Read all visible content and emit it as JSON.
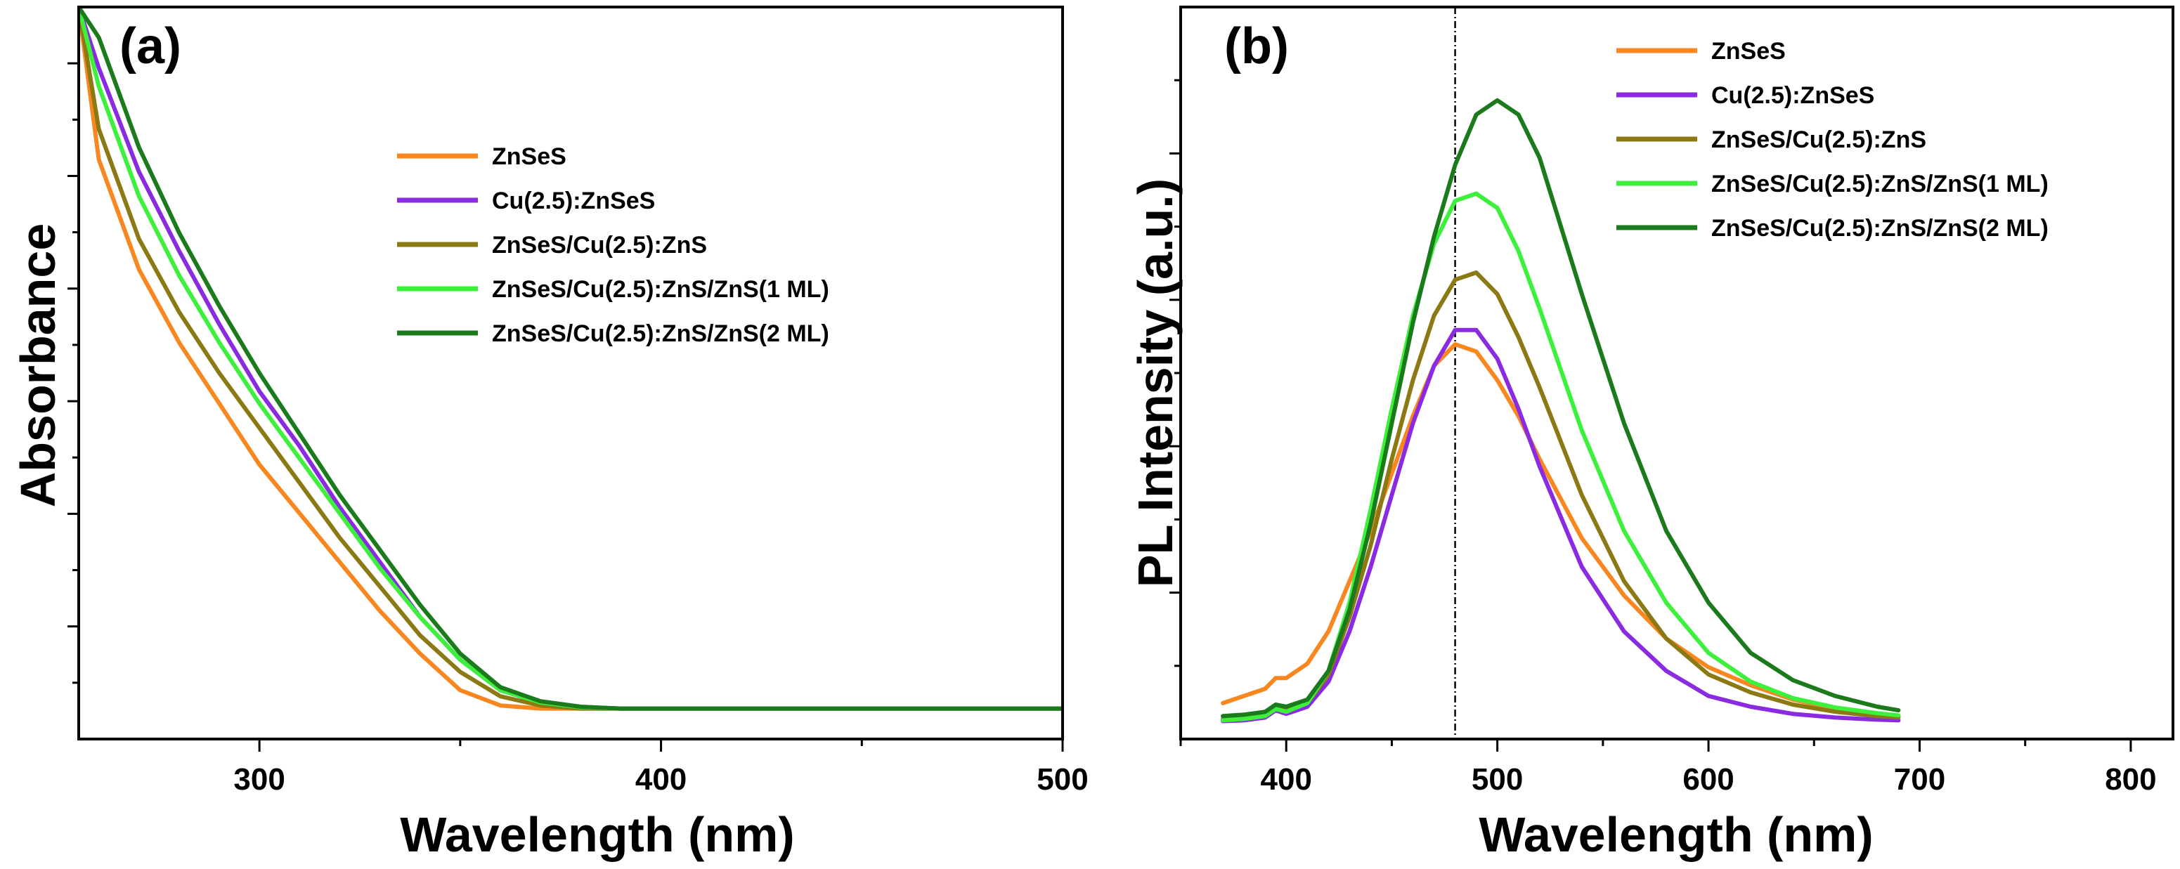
{
  "chart_data": [
    {
      "panel_label": "(a)",
      "type": "line",
      "xlabel": "Wavelength (nm)",
      "ylabel": "Absorbance",
      "xlim": [
        255,
        500
      ],
      "ylim": [
        -0.05,
        1.15
      ],
      "xticks": [
        300,
        400,
        500
      ],
      "yticks_labeled": false,
      "legend_position": "top-center",
      "series": [
        {
          "name": "ZnSeS",
          "color": "#F7871E",
          "x": [
            255,
            260,
            270,
            280,
            290,
            300,
            310,
            320,
            330,
            340,
            350,
            360,
            370,
            380,
            390,
            400,
            450,
            500
          ],
          "y": [
            1.15,
            0.9,
            0.72,
            0.6,
            0.5,
            0.4,
            0.32,
            0.24,
            0.16,
            0.09,
            0.03,
            0.005,
            0.0,
            0.0,
            0.0,
            0.0,
            0.0,
            0.0
          ]
        },
        {
          "name": "Cu(2.5):ZnSeS",
          "color": "#8A2BE2",
          "x": [
            255,
            260,
            270,
            280,
            290,
            300,
            310,
            320,
            330,
            340,
            350,
            360,
            370,
            380,
            390,
            400,
            450,
            500
          ],
          "y": [
            1.15,
            1.05,
            0.88,
            0.75,
            0.63,
            0.52,
            0.43,
            0.33,
            0.24,
            0.15,
            0.08,
            0.03,
            0.01,
            0.002,
            0.0,
            0.0,
            0.0,
            0.0
          ]
        },
        {
          "name": "ZnSeS/Cu(2.5):ZnS",
          "color": "#8B7A14",
          "x": [
            255,
            260,
            270,
            280,
            290,
            300,
            310,
            320,
            330,
            340,
            350,
            360,
            370,
            380,
            390,
            400,
            450,
            500
          ],
          "y": [
            1.15,
            0.95,
            0.77,
            0.65,
            0.55,
            0.46,
            0.37,
            0.28,
            0.2,
            0.12,
            0.06,
            0.02,
            0.005,
            0.0,
            0.0,
            0.0,
            0.0,
            0.0
          ]
        },
        {
          "name": "ZnSeS/Cu(2.5):ZnS/ZnS(1 ML)",
          "color": "#3CF03C",
          "x": [
            255,
            260,
            270,
            280,
            290,
            300,
            310,
            320,
            330,
            340,
            350,
            360,
            370,
            380,
            390,
            400,
            450,
            500
          ],
          "y": [
            1.15,
            1.02,
            0.84,
            0.71,
            0.6,
            0.5,
            0.41,
            0.32,
            0.23,
            0.15,
            0.08,
            0.03,
            0.01,
            0.002,
            0.0,
            0.0,
            0.0,
            0.0
          ]
        },
        {
          "name": "ZnSeS/Cu(2.5):ZnS/ZnS(2 ML)",
          "color": "#1B7A1B",
          "x": [
            255,
            260,
            270,
            280,
            290,
            300,
            310,
            320,
            330,
            340,
            350,
            360,
            370,
            380,
            390,
            400,
            450,
            500
          ],
          "y": [
            1.15,
            1.1,
            0.92,
            0.78,
            0.66,
            0.55,
            0.45,
            0.35,
            0.26,
            0.17,
            0.09,
            0.035,
            0.012,
            0.003,
            0.0,
            0.0,
            0.0,
            0.0
          ]
        }
      ]
    },
    {
      "panel_label": "(b)",
      "type": "line",
      "xlabel": "Wavelength (nm)",
      "ylabel": "PL Intensity (a.u.)",
      "xlim": [
        350,
        820
      ],
      "ylim": [
        -0.02,
        1.0
      ],
      "xticks": [
        400,
        500,
        600,
        700,
        800
      ],
      "yticks_labeled": false,
      "reference_line_x": 480,
      "legend_position": "top-right",
      "series": [
        {
          "name": "ZnSeS",
          "color": "#F7871E",
          "x": [
            370,
            380,
            390,
            395,
            400,
            410,
            420,
            430,
            440,
            450,
            460,
            470,
            480,
            490,
            500,
            510,
            520,
            540,
            560,
            580,
            600,
            620,
            640,
            660,
            680,
            690
          ],
          "y": [
            0.03,
            0.04,
            0.05,
            0.065,
            0.065,
            0.085,
            0.13,
            0.2,
            0.27,
            0.35,
            0.43,
            0.5,
            0.53,
            0.52,
            0.48,
            0.43,
            0.37,
            0.26,
            0.18,
            0.12,
            0.08,
            0.055,
            0.035,
            0.022,
            0.015,
            0.012
          ]
        },
        {
          "name": "Cu(2.5):ZnSeS",
          "color": "#8A2BE2",
          "x": [
            370,
            380,
            390,
            395,
            400,
            410,
            420,
            430,
            440,
            450,
            460,
            470,
            480,
            490,
            500,
            510,
            520,
            540,
            560,
            580,
            600,
            620,
            640,
            660,
            680,
            690
          ],
          "y": [
            0.005,
            0.006,
            0.01,
            0.02,
            0.015,
            0.025,
            0.06,
            0.13,
            0.22,
            0.32,
            0.42,
            0.5,
            0.55,
            0.55,
            0.51,
            0.44,
            0.36,
            0.22,
            0.13,
            0.075,
            0.04,
            0.025,
            0.015,
            0.01,
            0.007,
            0.006
          ]
        },
        {
          "name": "ZnSeS/Cu(2.5):ZnS",
          "color": "#8B7A14",
          "x": [
            370,
            380,
            390,
            395,
            400,
            410,
            420,
            430,
            440,
            450,
            460,
            470,
            480,
            490,
            500,
            510,
            520,
            540,
            560,
            580,
            600,
            620,
            640,
            660,
            680,
            690
          ],
          "y": [
            0.008,
            0.01,
            0.014,
            0.025,
            0.02,
            0.03,
            0.07,
            0.15,
            0.25,
            0.37,
            0.48,
            0.57,
            0.62,
            0.63,
            0.6,
            0.54,
            0.47,
            0.32,
            0.2,
            0.12,
            0.07,
            0.045,
            0.028,
            0.018,
            0.012,
            0.01
          ]
        },
        {
          "name": "ZnSeS/Cu(2.5):ZnS/ZnS(1 ML)",
          "color": "#3CF03C",
          "x": [
            370,
            380,
            390,
            395,
            400,
            410,
            420,
            430,
            440,
            450,
            460,
            470,
            480,
            490,
            500,
            510,
            520,
            540,
            560,
            580,
            600,
            620,
            640,
            660,
            680,
            690
          ],
          "y": [
            0.006,
            0.008,
            0.012,
            0.022,
            0.018,
            0.03,
            0.075,
            0.17,
            0.3,
            0.44,
            0.57,
            0.67,
            0.73,
            0.74,
            0.72,
            0.66,
            0.58,
            0.41,
            0.27,
            0.17,
            0.1,
            0.06,
            0.037,
            0.024,
            0.016,
            0.013
          ]
        },
        {
          "name": "ZnSeS/Cu(2.5):ZnS/ZnS(2 ML)",
          "color": "#1B7A1B",
          "x": [
            370,
            380,
            390,
            395,
            400,
            410,
            420,
            430,
            440,
            450,
            460,
            470,
            480,
            490,
            500,
            510,
            520,
            540,
            560,
            580,
            600,
            620,
            640,
            660,
            680,
            690
          ],
          "y": [
            0.012,
            0.014,
            0.018,
            0.028,
            0.025,
            0.035,
            0.075,
            0.16,
            0.28,
            0.42,
            0.56,
            0.68,
            0.78,
            0.85,
            0.87,
            0.85,
            0.79,
            0.6,
            0.42,
            0.27,
            0.17,
            0.1,
            0.062,
            0.04,
            0.025,
            0.02
          ]
        }
      ]
    }
  ]
}
